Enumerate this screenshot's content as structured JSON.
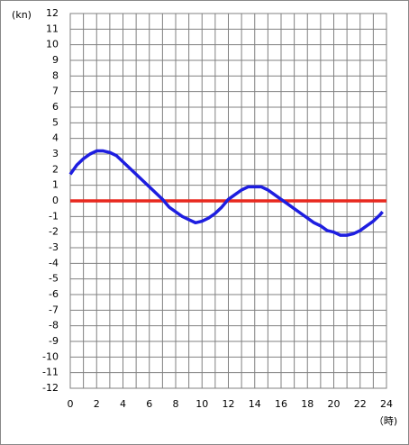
{
  "chart_data": {
    "type": "line",
    "y_label": "(kn)",
    "x_label": "（時)",
    "xlim": [
      0,
      24
    ],
    "xticks": [
      0,
      2,
      4,
      6,
      8,
      10,
      12,
      14,
      16,
      18,
      20,
      22,
      24
    ],
    "xminorticks": [
      1,
      3,
      5,
      7,
      9,
      11,
      13,
      15,
      17,
      19,
      21,
      23
    ],
    "ylim": [
      -12,
      12
    ],
    "yticks": [
      -12,
      -11,
      -10,
      -9,
      -8,
      -7,
      -6,
      -5,
      -4,
      -3,
      -2,
      -1,
      0,
      1,
      2,
      3,
      4,
      5,
      6,
      7,
      8,
      9,
      10,
      11,
      12
    ],
    "grid": true,
    "series": [
      {
        "color": "#e8281e",
        "x": [
          0,
          24
        ],
        "values": [
          0,
          0
        ]
      },
      {
        "color": "#1e1ee0",
        "x": [
          0,
          0.5,
          1,
          1.5,
          2,
          2.5,
          3,
          3.5,
          4,
          5,
          6,
          7,
          7.5,
          8,
          8.5,
          9,
          9.5,
          10,
          10.5,
          11,
          11.5,
          12,
          12.5,
          13,
          13.5,
          14,
          14.5,
          15,
          15.5,
          16,
          16.5,
          17,
          17.5,
          18,
          18.5,
          19,
          19.5,
          20,
          20.5,
          21,
          21.5,
          22,
          22.5,
          23,
          23.5,
          23.7
        ],
        "values": [
          1.7,
          2.3,
          2.7,
          3.0,
          3.2,
          3.2,
          3.1,
          2.9,
          2.5,
          1.7,
          0.9,
          0.1,
          -0.4,
          -0.7,
          -1.0,
          -1.2,
          -1.4,
          -1.3,
          -1.1,
          -0.8,
          -0.4,
          0.1,
          0.4,
          0.7,
          0.9,
          0.9,
          0.9,
          0.7,
          0.4,
          0.1,
          -0.2,
          -0.5,
          -0.8,
          -1.1,
          -1.4,
          -1.6,
          -1.9,
          -2.0,
          -2.2,
          -2.2,
          -2.1,
          -1.9,
          -1.6,
          -1.3,
          -0.9,
          -0.7
        ]
      }
    ]
  }
}
